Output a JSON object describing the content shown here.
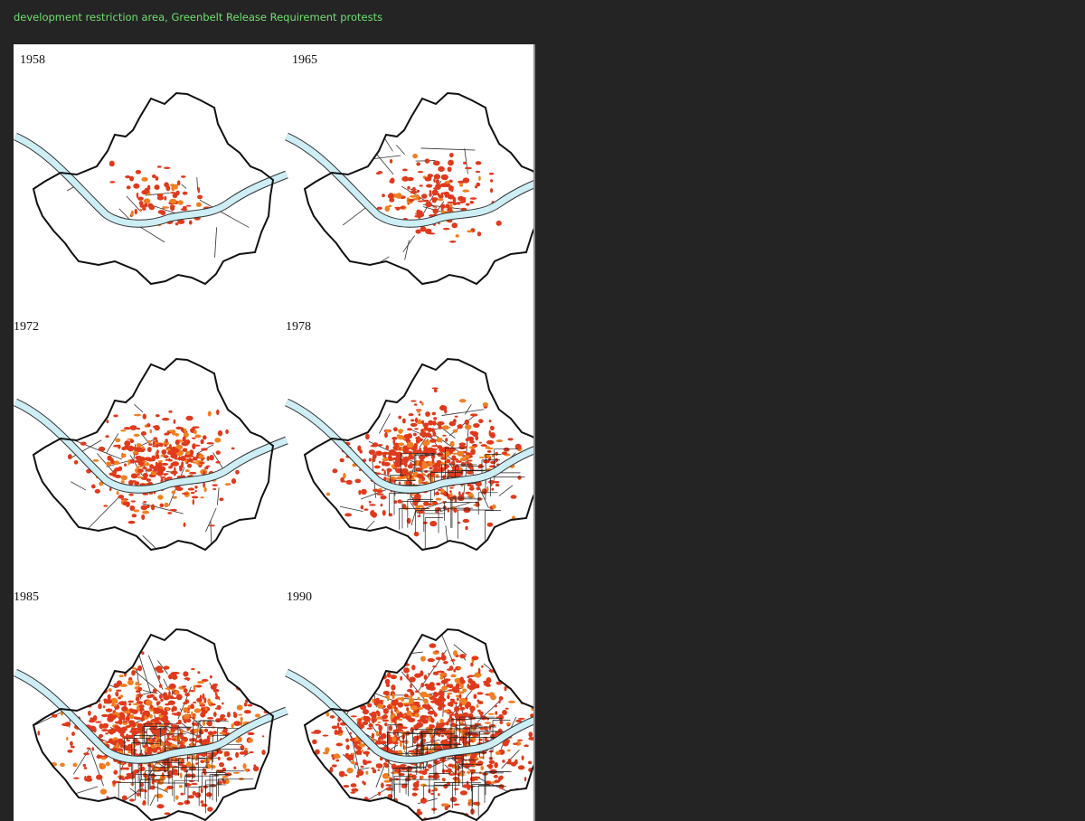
{
  "caption": "development restriction area, Greenbelt Release Requirement protests",
  "maps": [
    {
      "label": "1958"
    },
    {
      "label": "1965"
    },
    {
      "label": "1972"
    },
    {
      "label": "1978"
    },
    {
      "label": "1985"
    },
    {
      "label": "1990"
    }
  ]
}
